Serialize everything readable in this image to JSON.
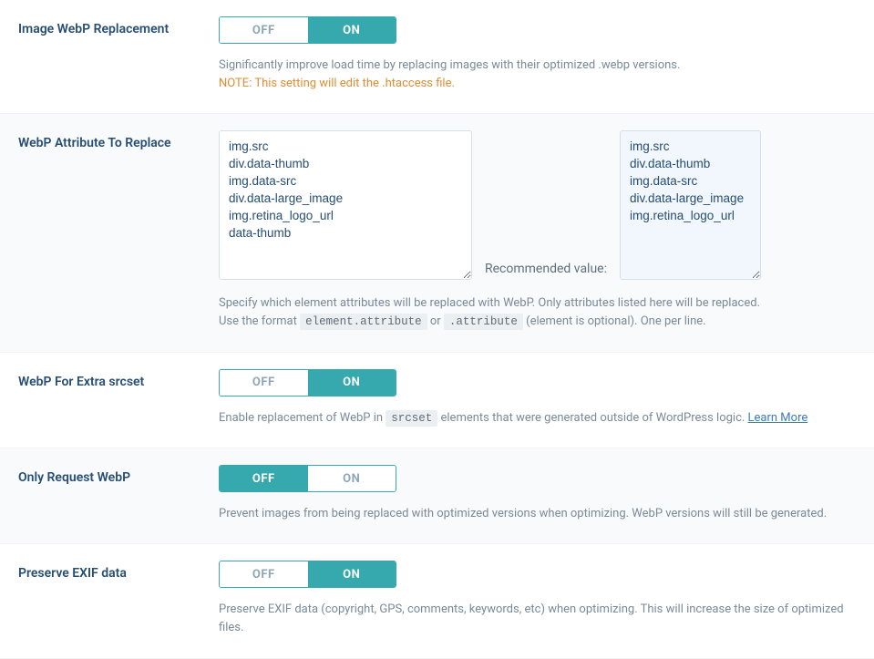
{
  "toggle_labels": {
    "off": "OFF",
    "on": "ON"
  },
  "webp_replacement": {
    "label": "Image WebP Replacement",
    "state": "on",
    "desc": "Significantly improve load time by replacing images with their optimized .webp versions.",
    "note_label": "NOTE: ",
    "note_text": "This setting will edit the .htaccess file."
  },
  "webp_attr": {
    "label": "WebP Attribute To Replace",
    "current_value": "img.src\ndiv.data-thumb\nimg.data-src\ndiv.data-large_image\nimg.retina_logo_url\ndata-thumb",
    "recommended_label": "Recommended value:",
    "recommended_value": "img.src\ndiv.data-thumb\nimg.data-src\ndiv.data-large_image\nimg.retina_logo_url",
    "desc_line1_a": "Specify which element attributes will be replaced with WebP. Only attributes listed here will be replaced.",
    "desc_line2_a": "Use the format ",
    "desc_code1": "element.attribute",
    "desc_line2_b": " or ",
    "desc_code2": ".attribute",
    "desc_line2_c": " (element is optional). One per line."
  },
  "webp_srcset": {
    "label": "WebP For Extra srcset",
    "state": "on",
    "desc_a": "Enable replacement of WebP in ",
    "desc_code": "srcset",
    "desc_b": " elements that were generated outside of WordPress logic. ",
    "learn_more": "Learn More"
  },
  "only_request_webp": {
    "label": "Only Request WebP",
    "state": "off",
    "desc": "Prevent images from being replaced with optimized versions when optimizing. WebP versions will still be generated."
  },
  "preserve_exif": {
    "label": "Preserve EXIF data",
    "state": "on",
    "desc": "Preserve EXIF data (copyright, GPS, comments, keywords, etc) when optimizing. This will increase the size of optimized files."
  },
  "colors": {
    "accent": "#36a9ae",
    "label": "#264d73",
    "muted": "#7a8a99",
    "note": "#e08c33"
  }
}
